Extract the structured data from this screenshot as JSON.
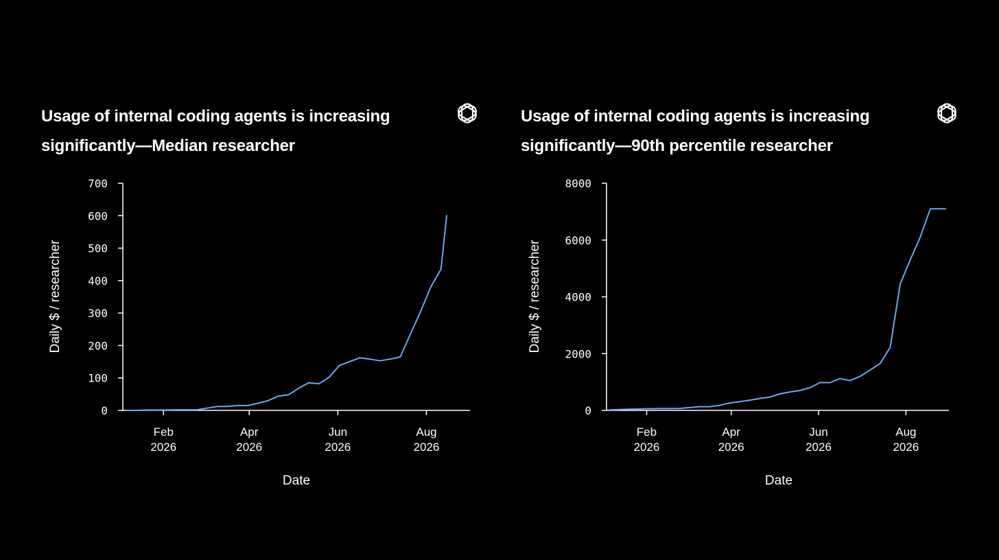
{
  "colors": {
    "background": "#000000",
    "text": "#ffffff",
    "line": "#6aaaf0",
    "axis": "#ffffff"
  },
  "logo_icon": "openai-logo-icon",
  "chart_data": [
    {
      "type": "line",
      "title": "Usage of internal coding agents is increasing significantly—Median researcher",
      "xlabel": "Date",
      "ylabel": "Daily $ / researcher",
      "ylim": [
        0,
        700
      ],
      "yticks": [
        0,
        100,
        200,
        300,
        400,
        500,
        600,
        700
      ],
      "yticklabels": [
        "0",
        "100",
        "200",
        "300",
        "400",
        "500",
        "600",
        "700"
      ],
      "xlim": [
        "2026-01-04",
        "2026-08-31"
      ],
      "xticks": [
        {
          "date": "2026-02-01",
          "label": [
            "Feb",
            "2026"
          ]
        },
        {
          "date": "2026-04-01",
          "label": [
            "Apr",
            "2026"
          ]
        },
        {
          "date": "2026-06-01",
          "label": [
            "Jun",
            "2026"
          ]
        },
        {
          "date": "2026-08-01",
          "label": [
            "Aug",
            "2026"
          ]
        }
      ],
      "grid": false,
      "series": [
        {
          "x": [
            "2026-01-06",
            "2026-01-13",
            "2026-01-20",
            "2026-01-27",
            "2026-02-03",
            "2026-02-10",
            "2026-02-17",
            "2026-02-24",
            "2026-03-03",
            "2026-03-10",
            "2026-03-17",
            "2026-03-24",
            "2026-03-31",
            "2026-04-07",
            "2026-04-14",
            "2026-04-21",
            "2026-04-28",
            "2026-05-05",
            "2026-05-12",
            "2026-05-19",
            "2026-05-26",
            "2026-06-02",
            "2026-06-09",
            "2026-06-16",
            "2026-06-23",
            "2026-06-30",
            "2026-07-07",
            "2026-07-14",
            "2026-07-21",
            "2026-07-28",
            "2026-08-04",
            "2026-08-11",
            "2026-08-15"
          ],
          "values": [
            0,
            0,
            1,
            1,
            1,
            2,
            2,
            2,
            7,
            12,
            12,
            15,
            15,
            22,
            30,
            44,
            48,
            68,
            85,
            82,
            102,
            138,
            150,
            162,
            158,
            153,
            158,
            165,
            235,
            305,
            380,
            435,
            602
          ]
        }
      ]
    },
    {
      "type": "line",
      "title": "Usage of internal coding agents is increasing significantly—90th percentile researcher",
      "xlabel": "Date",
      "ylabel": "Daily $ / researcher",
      "ylim": [
        0,
        8000
      ],
      "yticks": [
        0,
        2000,
        4000,
        6000,
        8000
      ],
      "yticklabels": [
        "0",
        "2000",
        "4000",
        "6000",
        "8000"
      ],
      "xlim": [
        "2026-01-04",
        "2026-08-31"
      ],
      "xticks": [
        {
          "date": "2026-02-01",
          "label": [
            "Feb",
            "2026"
          ]
        },
        {
          "date": "2026-04-01",
          "label": [
            "Apr",
            "2026"
          ]
        },
        {
          "date": "2026-06-01",
          "label": [
            "Jun",
            "2026"
          ]
        },
        {
          "date": "2026-08-01",
          "label": [
            "Aug",
            "2026"
          ]
        }
      ],
      "grid": false,
      "series": [
        {
          "x": [
            "2026-01-06",
            "2026-01-13",
            "2026-01-20",
            "2026-01-27",
            "2026-02-03",
            "2026-02-10",
            "2026-02-17",
            "2026-02-24",
            "2026-03-03",
            "2026-03-10",
            "2026-03-17",
            "2026-03-24",
            "2026-03-31",
            "2026-04-07",
            "2026-04-14",
            "2026-04-21",
            "2026-04-28",
            "2026-05-05",
            "2026-05-12",
            "2026-05-19",
            "2026-05-26",
            "2026-06-02",
            "2026-06-09",
            "2026-06-16",
            "2026-06-23",
            "2026-06-30",
            "2026-07-07",
            "2026-07-14",
            "2026-07-21",
            "2026-07-28",
            "2026-08-04",
            "2026-08-11",
            "2026-08-18",
            "2026-08-25",
            "2026-08-29"
          ],
          "values": [
            20,
            30,
            40,
            50,
            60,
            65,
            65,
            70,
            100,
            130,
            130,
            180,
            260,
            310,
            360,
            420,
            470,
            580,
            650,
            700,
            800,
            980,
            980,
            1120,
            1050,
            1200,
            1420,
            1650,
            2220,
            4450,
            5300,
            6100,
            7100,
            7100,
            7100
          ]
        }
      ]
    }
  ]
}
